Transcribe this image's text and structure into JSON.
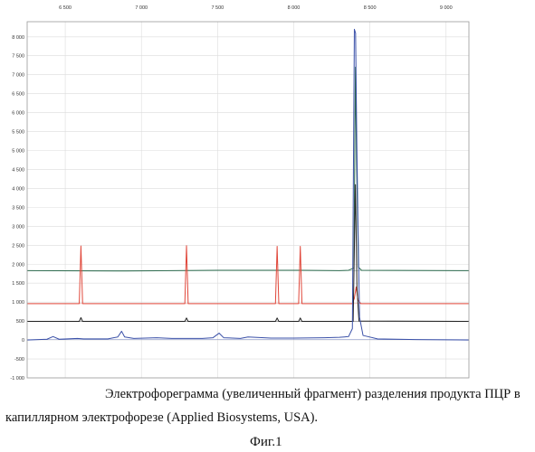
{
  "caption": {
    "line1": "Электрофореграмма (увеличенный фрагмент) разделения продукта ПЦР в",
    "line2": "капиллярном электрофорезе (Applied Biosystems, USA).",
    "figure_label": "Фиг.1"
  },
  "chart_data": {
    "type": "line",
    "title": "",
    "xlabel": "",
    "ylabel": "",
    "xlim": [
      6250,
      9150
    ],
    "ylim": [
      -1000,
      8400
    ],
    "grid": true,
    "x_ticks": [
      {
        "value": 6500,
        "label": "6 500"
      },
      {
        "value": 7000,
        "label": "7 000"
      },
      {
        "value": 7500,
        "label": "7 500"
      },
      {
        "value": 8000,
        "label": "8 000"
      },
      {
        "value": 8500,
        "label": "8 500"
      },
      {
        "value": 9000,
        "label": "9 000"
      }
    ],
    "y_ticks": [
      {
        "value": 8000,
        "label": "8 000"
      },
      {
        "value": 7500,
        "label": "7 500"
      },
      {
        "value": 7000,
        "label": "7 000"
      },
      {
        "value": 6500,
        "label": "6 500"
      },
      {
        "value": 6000,
        "label": "6 000"
      },
      {
        "value": 5500,
        "label": "5 500"
      },
      {
        "value": 5000,
        "label": "5 000"
      },
      {
        "value": 4500,
        "label": "4 500"
      },
      {
        "value": 4000,
        "label": "4 000"
      },
      {
        "value": 3500,
        "label": "3 500"
      },
      {
        "value": 3000,
        "label": "3 000"
      },
      {
        "value": 2500,
        "label": "2 500"
      },
      {
        "value": 2000,
        "label": "2 000"
      },
      {
        "value": 1500,
        "label": "1 500"
      },
      {
        "value": 1000,
        "label": "1 000"
      },
      {
        "value": 500,
        "label": "500"
      },
      {
        "value": 0,
        "label": "0"
      },
      {
        "value": -500,
        "label": "-500"
      },
      {
        "value": -1000,
        "label": "-1 000"
      }
    ],
    "colors": {
      "green": "#2e6b4f",
      "red": "#e0473a",
      "black": "#222222",
      "blue": "#3a50a8",
      "grid": "#dcdcdc",
      "axis": "#9a9a9a"
    },
    "series": [
      {
        "color_key": "green",
        "baseline": 1830,
        "points": [
          [
            6250,
            1830
          ],
          [
            6900,
            1820
          ],
          [
            7500,
            1840
          ],
          [
            8050,
            1840
          ],
          [
            8300,
            1830
          ],
          [
            8360,
            1840
          ],
          [
            8395,
            1900
          ],
          [
            8405,
            7200
          ],
          [
            8412,
            4800
          ],
          [
            8425,
            1920
          ],
          [
            8445,
            1840
          ],
          [
            9150,
            1830
          ]
        ]
      },
      {
        "color_key": "red",
        "baseline": 960,
        "points": [
          [
            6250,
            960
          ],
          [
            6592,
            960
          ],
          [
            6603,
            2480
          ],
          [
            6614,
            960
          ],
          [
            7285,
            960
          ],
          [
            7296,
            2490
          ],
          [
            7307,
            960
          ],
          [
            7880,
            960
          ],
          [
            7891,
            2470
          ],
          [
            7902,
            960
          ],
          [
            8032,
            960
          ],
          [
            8043,
            2470
          ],
          [
            8054,
            960
          ],
          [
            8385,
            960
          ],
          [
            8398,
            1100
          ],
          [
            8410,
            1400
          ],
          [
            8422,
            1050
          ],
          [
            8440,
            960
          ],
          [
            9150,
            960
          ]
        ]
      },
      {
        "color_key": "black",
        "baseline": 490,
        "points": [
          [
            6250,
            490
          ],
          [
            6592,
            490
          ],
          [
            6603,
            590
          ],
          [
            6614,
            490
          ],
          [
            7285,
            490
          ],
          [
            7296,
            580
          ],
          [
            7307,
            490
          ],
          [
            7880,
            490
          ],
          [
            7891,
            580
          ],
          [
            7902,
            490
          ],
          [
            8032,
            490
          ],
          [
            8043,
            580
          ],
          [
            8054,
            490
          ],
          [
            8390,
            490
          ],
          [
            8405,
            4100
          ],
          [
            8415,
            1400
          ],
          [
            8428,
            500
          ],
          [
            9150,
            490
          ]
        ]
      },
      {
        "color_key": "blue",
        "baseline": 10,
        "points": [
          [
            6250,
            0
          ],
          [
            6380,
            20
          ],
          [
            6420,
            90
          ],
          [
            6460,
            20
          ],
          [
            6580,
            40
          ],
          [
            6620,
            30
          ],
          [
            6780,
            30
          ],
          [
            6845,
            80
          ],
          [
            6870,
            230
          ],
          [
            6890,
            80
          ],
          [
            6950,
            40
          ],
          [
            7100,
            60
          ],
          [
            7200,
            40
          ],
          [
            7400,
            40
          ],
          [
            7470,
            60
          ],
          [
            7510,
            180
          ],
          [
            7540,
            60
          ],
          [
            7650,
            40
          ],
          [
            7700,
            80
          ],
          [
            7850,
            50
          ],
          [
            8000,
            50
          ],
          [
            8200,
            60
          ],
          [
            8300,
            70
          ],
          [
            8360,
            90
          ],
          [
            8385,
            300
          ],
          [
            8398,
            8200
          ],
          [
            8406,
            8100
          ],
          [
            8414,
            5200
          ],
          [
            8422,
            3000
          ],
          [
            8432,
            600
          ],
          [
            8455,
            120
          ],
          [
            8550,
            30
          ],
          [
            8800,
            10
          ],
          [
            9150,
            0
          ]
        ]
      }
    ]
  }
}
